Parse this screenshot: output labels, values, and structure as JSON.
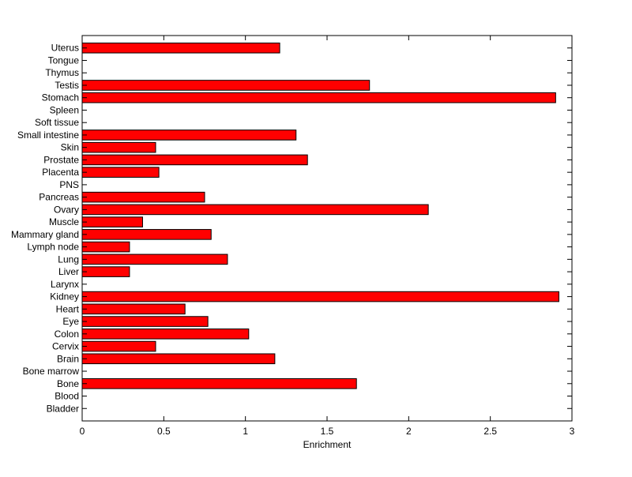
{
  "chart_data": {
    "type": "bar",
    "orientation": "horizontal",
    "title": "",
    "xlabel": "Enrichment",
    "ylabel": "",
    "xlim": [
      0,
      3
    ],
    "xticks": [
      "0",
      "0.5",
      "1",
      "1.5",
      "2",
      "2.5",
      "3"
    ],
    "grid": false,
    "bar_color": "#ff0000",
    "bar_edge_color": "#000000",
    "categories": [
      "Uterus",
      "Tongue",
      "Thymus",
      "Testis",
      "Stomach",
      "Spleen",
      "Soft tissue",
      "Small intestine",
      "Skin",
      "Prostate",
      "Placenta",
      "PNS",
      "Pancreas",
      "Ovary",
      "Muscle",
      "Mammary gland",
      "Lymph node",
      "Lung",
      "Liver",
      "Larynx",
      "Kidney",
      "Heart",
      "Eye",
      "Colon",
      "Cervix",
      "Brain",
      "Bone marrow",
      "Bone",
      "Blood",
      "Bladder"
    ],
    "values": [
      1.21,
      0,
      0,
      1.76,
      2.9,
      0,
      0,
      1.31,
      0.45,
      1.38,
      0.47,
      0,
      0.75,
      2.12,
      0.37,
      0.79,
      0.29,
      0.89,
      0.29,
      0,
      2.92,
      0.63,
      0.77,
      1.02,
      0.45,
      1.18,
      0,
      1.68,
      0,
      0
    ]
  }
}
